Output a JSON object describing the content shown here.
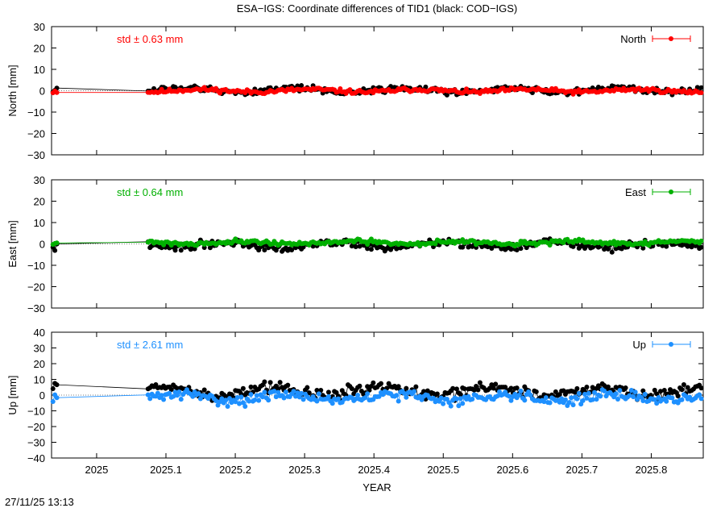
{
  "title": "ESA−IGS: Coordinate differences of TID1 (black: COD−IGS)",
  "xlabel": "YEAR",
  "timestamp": "27/11/25 13:13",
  "chart_data": {
    "type": "scatter",
    "xlim": [
      2024.935,
      2025.875
    ],
    "xticks": [
      2025.0,
      2025.1,
      2025.2,
      2025.3,
      2025.4,
      2025.5,
      2025.6,
      2025.7,
      2025.8
    ],
    "xtick_labels": [
      "2025",
      "2025.1",
      "2025.2",
      "2025.3",
      "2025.4",
      "2025.5",
      "2025.6",
      "2025.7",
      "2025.8"
    ],
    "data_gap": [
      2024.944,
      2025.073
    ],
    "panels": [
      {
        "ylabel": "North [mm]",
        "ylim": [
          -30,
          30
        ],
        "yticks": [
          30,
          20,
          10,
          0,
          -10,
          -20,
          -30
        ],
        "ytick_labels": [
          "30",
          "20",
          "10",
          "0",
          "−10",
          "−20",
          "−30"
        ],
        "std_text": "std ± 0.63 mm",
        "legend": "North",
        "color": "#ff0000",
        "esa": {
          "mean": 0.0,
          "amp": 0.6,
          "noise": 0.5,
          "seed": 11
        },
        "cod": {
          "mean": 0.3,
          "amp": 1.0,
          "noise": 0.7,
          "seed": 12
        }
      },
      {
        "ylabel": "East [mm]",
        "ylim": [
          -30,
          30
        ],
        "yticks": [
          30,
          20,
          10,
          0,
          -10,
          -20,
          -30
        ],
        "ytick_labels": [
          "30",
          "20",
          "10",
          "0",
          "−10",
          "−20",
          "−30"
        ],
        "std_text": "std ± 0.64 mm",
        "legend": "East",
        "color": "#00b000",
        "esa": {
          "mean": 0.6,
          "amp": 0.6,
          "noise": 0.5,
          "seed": 21
        },
        "cod": {
          "mean": -0.5,
          "amp": 1.1,
          "noise": 0.9,
          "seed": 22
        }
      },
      {
        "ylabel": "Up [mm]",
        "ylim": [
          -40,
          40
        ],
        "yticks": [
          40,
          30,
          20,
          10,
          0,
          -10,
          -20,
          -30,
          -40
        ],
        "ytick_labels": [
          "40",
          "30",
          "20",
          "10",
          "0",
          "−10",
          "−20",
          "−30",
          "−40"
        ],
        "std_text": "std ± 2.61 mm",
        "legend": "Up",
        "color": "#1e90ff",
        "esa": {
          "mean": -1.5,
          "amp": 2.0,
          "noise": 1.6,
          "seed": 31
        },
        "cod": {
          "mean": 2.5,
          "amp": 2.8,
          "noise": 1.8,
          "seed": 32
        }
      }
    ]
  }
}
